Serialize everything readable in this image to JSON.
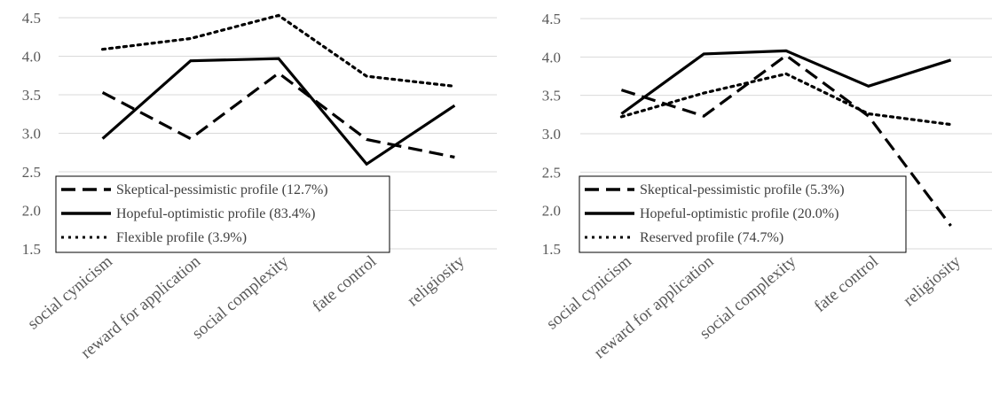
{
  "chart_data": [
    {
      "type": "line",
      "categories": [
        "social cynicism",
        "reward for application",
        "social complexity",
        "fate control",
        "religiosity"
      ],
      "ylim": [
        1.5,
        4.5
      ],
      "yticks": [
        "1.5",
        "2.0",
        "2.5",
        "3.0",
        "3.5",
        "4.0",
        "4.5"
      ],
      "grid": true,
      "legend_position": "bottom-left",
      "series": [
        {
          "name": "Skeptical-pessimistic profile (12.7%)",
          "style": "dashed",
          "color": "#000000",
          "values": [
            3.53,
            2.93,
            3.78,
            2.92,
            2.69
          ]
        },
        {
          "name": "Hopeful-optimistic profile (83.4%)",
          "style": "solid",
          "color": "#000000",
          "values": [
            2.93,
            3.94,
            3.97,
            2.6,
            3.36
          ]
        },
        {
          "name": "Flexible profile (3.9%)",
          "style": "dotted",
          "color": "#000000",
          "values": [
            4.09,
            4.23,
            4.53,
            3.74,
            3.61
          ]
        }
      ]
    },
    {
      "type": "line",
      "categories": [
        "social cynicism",
        "reward for application",
        "social complexity",
        "fate control",
        "religiosity"
      ],
      "ylim": [
        1.5,
        4.5
      ],
      "yticks": [
        "1.5",
        "2.0",
        "2.5",
        "3.0",
        "3.5",
        "4.0",
        "4.5"
      ],
      "grid": true,
      "legend_position": "bottom-left",
      "series": [
        {
          "name": "Skeptical-pessimistic profile (5.3%)",
          "style": "dashed",
          "color": "#000000",
          "values": [
            3.57,
            3.23,
            4.02,
            3.23,
            1.8
          ]
        },
        {
          "name": "Hopeful-optimistic profile (20.0%)",
          "style": "solid",
          "color": "#000000",
          "values": [
            3.26,
            4.04,
            4.08,
            3.62,
            3.96
          ]
        },
        {
          "name": "Reserved profile (74.7%)",
          "style": "dotted",
          "color": "#000000",
          "values": [
            3.22,
            3.53,
            3.78,
            3.26,
            3.12
          ]
        }
      ]
    }
  ]
}
